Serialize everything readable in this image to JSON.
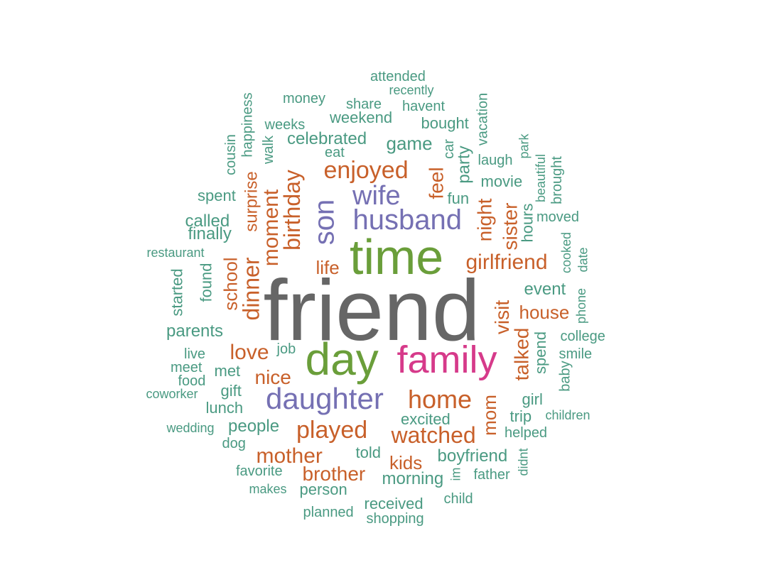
{
  "colors": {
    "teal": "#4a9a82",
    "orange": "#c8602a",
    "purple": "#7570b3",
    "green": "#6a9e3a",
    "magenta": "#d63a8a",
    "gray": "#666666"
  },
  "words": [
    {
      "text": "friend",
      "color": "gray"
    },
    {
      "text": "time",
      "color": "green"
    },
    {
      "text": "day",
      "color": "green"
    },
    {
      "text": "family",
      "color": "magenta"
    },
    {
      "text": "daughter",
      "color": "purple"
    },
    {
      "text": "husband",
      "color": "purple"
    },
    {
      "text": "son",
      "color": "purple"
    },
    {
      "text": "wife",
      "color": "purple"
    },
    {
      "text": "home",
      "color": "orange"
    },
    {
      "text": "played",
      "color": "orange"
    },
    {
      "text": "watched",
      "color": "orange"
    },
    {
      "text": "mother",
      "color": "orange"
    },
    {
      "text": "girlfriend",
      "color": "orange"
    },
    {
      "text": "enjoyed",
      "color": "orange"
    },
    {
      "text": "birthday",
      "color": "orange"
    },
    {
      "text": "dinner",
      "color": "orange"
    },
    {
      "text": "moment",
      "color": "orange"
    },
    {
      "text": "brother",
      "color": "orange"
    },
    {
      "text": "love",
      "color": "orange"
    },
    {
      "text": "nice",
      "color": "orange"
    },
    {
      "text": "kids",
      "color": "orange"
    },
    {
      "text": "house",
      "color": "orange"
    },
    {
      "text": "talked",
      "color": "orange"
    },
    {
      "text": "visit",
      "color": "orange"
    },
    {
      "text": "night",
      "color": "orange"
    },
    {
      "text": "sister",
      "color": "orange"
    },
    {
      "text": "feel",
      "color": "orange"
    },
    {
      "text": "school",
      "color": "orange"
    },
    {
      "text": "surprise",
      "color": "orange"
    },
    {
      "text": "mom",
      "color": "orange"
    },
    {
      "text": "life",
      "color": "orange"
    },
    {
      "text": "party",
      "color": "teal"
    },
    {
      "text": "game",
      "color": "teal"
    },
    {
      "text": "celebrated",
      "color": "teal"
    },
    {
      "text": "weekend",
      "color": "teal"
    },
    {
      "text": "bought",
      "color": "teal"
    },
    {
      "text": "event",
      "color": "teal"
    },
    {
      "text": "spend",
      "color": "teal"
    },
    {
      "text": "boyfriend",
      "color": "teal"
    },
    {
      "text": "morning",
      "color": "teal"
    },
    {
      "text": "people",
      "color": "teal"
    },
    {
      "text": "parents",
      "color": "teal"
    },
    {
      "text": "hours",
      "color": "teal"
    },
    {
      "text": "movie",
      "color": "teal"
    },
    {
      "text": "fun",
      "color": "teal"
    },
    {
      "text": "called",
      "color": "teal"
    },
    {
      "text": "finally",
      "color": "teal"
    },
    {
      "text": "found",
      "color": "teal"
    },
    {
      "text": "started",
      "color": "teal"
    },
    {
      "text": "met",
      "color": "teal"
    },
    {
      "text": "gift",
      "color": "teal"
    },
    {
      "text": "lunch",
      "color": "teal"
    },
    {
      "text": "told",
      "color": "teal"
    },
    {
      "text": "person",
      "color": "teal"
    },
    {
      "text": "received",
      "color": "teal"
    },
    {
      "text": "excited",
      "color": "teal"
    },
    {
      "text": "trip",
      "color": "teal"
    },
    {
      "text": "girl",
      "color": "teal"
    },
    {
      "text": "spent",
      "color": "teal"
    },
    {
      "text": "walk",
      "color": "teal"
    },
    {
      "text": "eat",
      "color": "teal"
    },
    {
      "text": "car",
      "color": "teal"
    },
    {
      "text": "laugh",
      "color": "teal"
    },
    {
      "text": "share",
      "color": "teal"
    },
    {
      "text": "havent",
      "color": "teal"
    },
    {
      "text": "money",
      "color": "teal"
    },
    {
      "text": "weeks",
      "color": "teal"
    },
    {
      "text": "recently",
      "color": "teal"
    },
    {
      "text": "attended",
      "color": "teal"
    },
    {
      "text": "happiness",
      "color": "teal"
    },
    {
      "text": "cousin",
      "color": "teal"
    },
    {
      "text": "vacation",
      "color": "teal"
    },
    {
      "text": "park",
      "color": "teal"
    },
    {
      "text": "beautiful",
      "color": "teal"
    },
    {
      "text": "brought",
      "color": "teal"
    },
    {
      "text": "moved",
      "color": "teal"
    },
    {
      "text": "cooked",
      "color": "teal"
    },
    {
      "text": "date",
      "color": "teal"
    },
    {
      "text": "phone",
      "color": "teal"
    },
    {
      "text": "college",
      "color": "teal"
    },
    {
      "text": "smile",
      "color": "teal"
    },
    {
      "text": "baby",
      "color": "teal"
    },
    {
      "text": "children",
      "color": "teal"
    },
    {
      "text": "helped",
      "color": "teal"
    },
    {
      "text": "didnt",
      "color": "teal"
    },
    {
      "text": "father",
      "color": "teal"
    },
    {
      "text": "im",
      "color": "teal"
    },
    {
      "text": "child",
      "color": "teal"
    },
    {
      "text": "shopping",
      "color": "teal"
    },
    {
      "text": "planned",
      "color": "teal"
    },
    {
      "text": "makes",
      "color": "teal"
    },
    {
      "text": "favorite",
      "color": "teal"
    },
    {
      "text": "dog",
      "color": "teal"
    },
    {
      "text": "wedding",
      "color": "teal"
    },
    {
      "text": "coworker",
      "color": "teal"
    },
    {
      "text": "food",
      "color": "teal"
    },
    {
      "text": "meet",
      "color": "teal"
    },
    {
      "text": "live",
      "color": "teal"
    },
    {
      "text": "job",
      "color": "teal"
    },
    {
      "text": "restaurant",
      "color": "teal"
    }
  ]
}
